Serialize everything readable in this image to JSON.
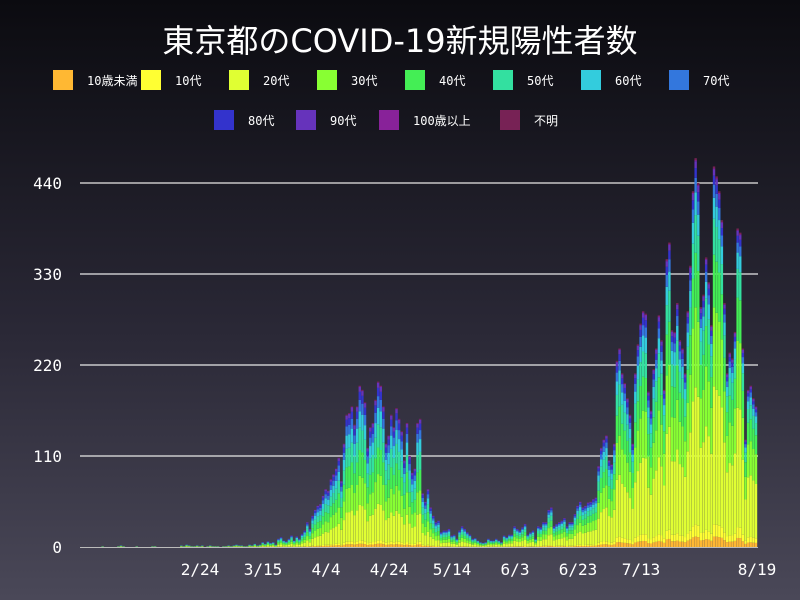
{
  "chart_data": {
    "type": "bar",
    "stacked": true,
    "title": "東京都のCOVID-19新規陽性者数",
    "xlabel": "",
    "ylabel": "",
    "ylim": [
      0,
      480
    ],
    "y_ticks": [
      0,
      110,
      220,
      330,
      440
    ],
    "x_start": "1/24",
    "x_end": "8/19",
    "x_ticks": [
      "2/24",
      "3/15",
      "4/4",
      "4/24",
      "5/14",
      "6/3",
      "6/23",
      "7/13",
      "8/19"
    ],
    "grid": "horizontal",
    "legend_position": "top",
    "series": [
      {
        "name": "10歳未満",
        "color": "#ffb833"
      },
      {
        "name": "10代",
        "color": "#ffff33"
      },
      {
        "name": "20代",
        "color": "#e0ff33"
      },
      {
        "name": "30代",
        "color": "#88ff33"
      },
      {
        "name": "40代",
        "color": "#44ee55"
      },
      {
        "name": "50代",
        "color": "#33e0a0"
      },
      {
        "name": "60代",
        "color": "#33ccdd"
      },
      {
        "name": "70代",
        "color": "#3377dd"
      },
      {
        "name": "80代",
        "color": "#3333cc"
      },
      {
        "name": "90代",
        "color": "#6633bb"
      },
      {
        "name": "100歳以上",
        "color": "#882299"
      },
      {
        "name": "不明",
        "color": "#772255"
      }
    ],
    "daily_totals": [
      0,
      1,
      0,
      0,
      0,
      0,
      0,
      1,
      2,
      1,
      0,
      0,
      0,
      0,
      1,
      0,
      0,
      0,
      0,
      0,
      1,
      1,
      0,
      0,
      0,
      0,
      0,
      0,
      0,
      0,
      0,
      2,
      1,
      3,
      2,
      1,
      1,
      2,
      1,
      2,
      0,
      1,
      2,
      1,
      1,
      1,
      0,
      1,
      1,
      2,
      1,
      2,
      3,
      2,
      2,
      1,
      1,
      3,
      2,
      4,
      2,
      3,
      6,
      4,
      7,
      5,
      6,
      3,
      10,
      12,
      8,
      7,
      10,
      14,
      8,
      13,
      10,
      16,
      20,
      30,
      22,
      38,
      45,
      50,
      52,
      62,
      70,
      68,
      82,
      88,
      95,
      108,
      80,
      125,
      160,
      162,
      170,
      148,
      170,
      195,
      190,
      175,
      120,
      145,
      150,
      178,
      200,
      195,
      170,
      125,
      135,
      160,
      145,
      168,
      155,
      140,
      105,
      150,
      110,
      90,
      95,
      150,
      155,
      65,
      55,
      70,
      48,
      38,
      30,
      32,
      18,
      20,
      20,
      22,
      14,
      15,
      10,
      20,
      25,
      22,
      18,
      15,
      10,
      11,
      8,
      6,
      5,
      6,
      10,
      8,
      8,
      10,
      8,
      6,
      14,
      12,
      15,
      15,
      25,
      22,
      20,
      24,
      28,
      15,
      18,
      20,
      10,
      25,
      24,
      30,
      30,
      45,
      48,
      25,
      28,
      30,
      32,
      35,
      25,
      30,
      30,
      40,
      50,
      55,
      48,
      50,
      54,
      55,
      58,
      60,
      98,
      120,
      130,
      135,
      105,
      100,
      125,
      225,
      240,
      210,
      198,
      180,
      160,
      125,
      210,
      245,
      270,
      285,
      282,
      188,
      165,
      215,
      240,
      280,
      250,
      190,
      348,
      368,
      262,
      260,
      295,
      250,
      240,
      210,
      285,
      340,
      430,
      470,
      440,
      290,
      305,
      350,
      320,
      268,
      460,
      448,
      430,
      395,
      295,
      210,
      235,
      228,
      260,
      385,
      380,
      240,
      130,
      190,
      195,
      180,
      170
    ]
  }
}
